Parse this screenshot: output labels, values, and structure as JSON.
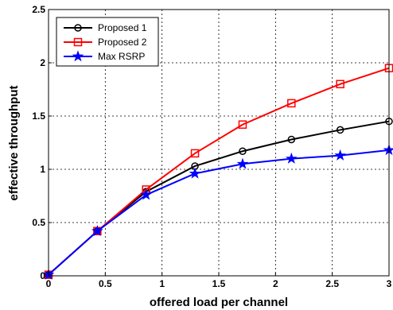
{
  "chart_data": {
    "type": "line",
    "title": "",
    "xlabel": "offered load per channel",
    "ylabel": "effective throughput",
    "x": [
      0,
      0.43,
      0.86,
      1.29,
      1.71,
      2.14,
      2.57,
      3.0
    ],
    "xlim": [
      0,
      3
    ],
    "ylim": [
      0,
      2.5
    ],
    "xticks": [
      "0",
      "0.5",
      "1",
      "1.5",
      "2",
      "2.5",
      "3"
    ],
    "yticks": [
      "0",
      "0.5",
      "1",
      "1.5",
      "2",
      "2.5"
    ],
    "grid": true,
    "legend_position": "top-left",
    "series": [
      {
        "name": "Proposed 1",
        "color": "#000000",
        "marker": "circle",
        "values": [
          0.01,
          0.42,
          0.79,
          1.03,
          1.17,
          1.28,
          1.37,
          1.45
        ]
      },
      {
        "name": "Proposed 2",
        "color": "#ff0000",
        "marker": "square",
        "values": [
          0.01,
          0.42,
          0.81,
          1.15,
          1.42,
          1.62,
          1.8,
          1.95
        ]
      },
      {
        "name": "Max RSRP",
        "color": "#0000ff",
        "marker": "star",
        "values": [
          0.01,
          0.42,
          0.76,
          0.96,
          1.05,
          1.1,
          1.13,
          1.18
        ]
      }
    ]
  }
}
